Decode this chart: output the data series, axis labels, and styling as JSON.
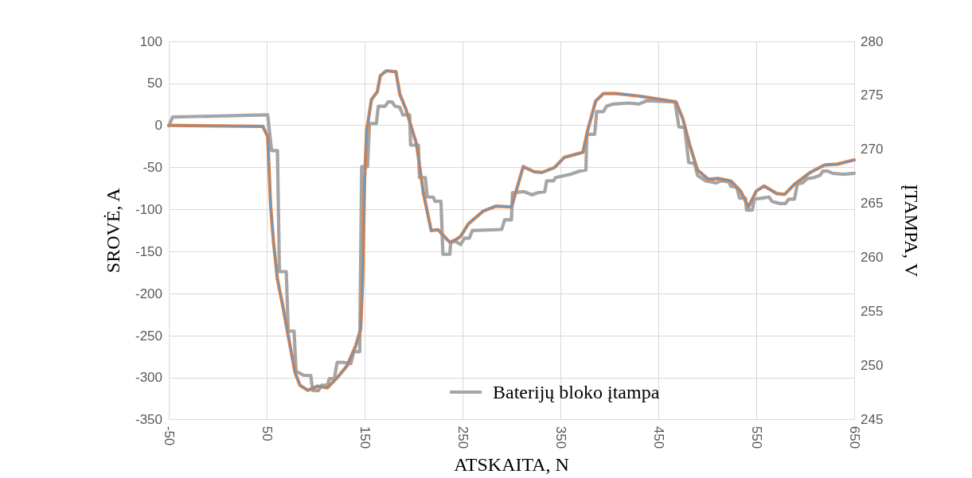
{
  "chart_data": {
    "type": "line",
    "xlabel": "ATSKAITA, N",
    "ylabel": "SROVĖ, A",
    "y2label": "ĮTAMPA, V",
    "xlim": [
      -50,
      650
    ],
    "xticks": [
      -50,
      50,
      150,
      250,
      350,
      450,
      550,
      650
    ],
    "ylim": [
      -350,
      100
    ],
    "yticks": [
      -350,
      -300,
      -250,
      -200,
      -150,
      -100,
      -50,
      0,
      50,
      100
    ],
    "y2lim": [
      245,
      280
    ],
    "y2ticks": [
      245,
      250,
      255,
      260,
      265,
      270,
      275,
      280
    ],
    "grid": true,
    "legend": "bottom",
    "marker": "none",
    "line_style": "solid",
    "series": [
      {
        "color": "#5b9bd5",
        "x": [
          -50,
          46,
          51,
          54,
          57,
          61,
          66,
          72,
          79,
          84,
          92,
          102,
          112,
          122,
          132,
          141,
          146,
          148,
          150,
          152,
          157,
          163,
          166,
          172,
          182,
          186,
          192,
          203,
          210,
          218,
          225,
          237,
          243,
          248,
          256,
          271,
          284,
          300,
          312,
          323,
          331,
          344,
          354,
          373,
          378,
          386,
          394,
          407,
          430,
          446,
          468,
          475,
          482,
          490,
          501,
          511,
          524,
          534,
          542,
          550,
          558,
          571,
          579,
          589,
          605,
          620,
          633,
          650
        ],
        "values": [
          0,
          -1,
          -13,
          -95,
          -139,
          -183,
          -212,
          -250,
          -294,
          -309,
          -315,
          -310,
          -312,
          -300,
          -286,
          -262,
          -242,
          -183,
          -66,
          -7,
          31,
          40,
          59,
          65,
          64,
          37,
          20,
          -22,
          -80,
          -125,
          -124,
          -139,
          -136,
          -132,
          -117,
          -102,
          -96,
          -97,
          -49,
          -55,
          -56,
          -50,
          -38,
          -32,
          -5,
          29,
          38,
          38,
          35,
          32,
          28,
          8,
          -23,
          -53,
          -64,
          -63,
          -66,
          -78,
          -97,
          -78,
          -72,
          -81,
          -82,
          -70,
          -56,
          -47,
          -46,
          -41
        ]
      },
      {
        "color": "#ed7d31",
        "x": [
          -50,
          46,
          51,
          54,
          57,
          61,
          66,
          72,
          79,
          84,
          92,
          102,
          112,
          122,
          132,
          141,
          146,
          148,
          150,
          152,
          157,
          163,
          166,
          172,
          182,
          186,
          192,
          203,
          210,
          218,
          225,
          237,
          243,
          248,
          256,
          271,
          284,
          300,
          312,
          323,
          331,
          344,
          354,
          373,
          378,
          386,
          394,
          407,
          430,
          446,
          468,
          475,
          482,
          490,
          501,
          511,
          524,
          534,
          542,
          550,
          558,
          571,
          579,
          589,
          605,
          620,
          633,
          650
        ],
        "values": [
          0,
          -1,
          -13,
          -95,
          -139,
          -183,
          -212,
          -250,
          -294,
          -309,
          -315,
          -310,
          -312,
          -300,
          -286,
          -262,
          -242,
          -183,
          -66,
          -7,
          31,
          40,
          59,
          65,
          64,
          37,
          20,
          -22,
          -80,
          -125,
          -124,
          -139,
          -136,
          -132,
          -117,
          -102,
          -96,
          -97,
          -49,
          -55,
          -56,
          -50,
          -38,
          -32,
          -5,
          29,
          38,
          38,
          35,
          32,
          28,
          8,
          -23,
          -53,
          -64,
          -63,
          -66,
          -78,
          -97,
          -78,
          -72,
          -81,
          -82,
          -70,
          -56,
          -47,
          -46,
          -41
        ]
      },
      {
        "name": "Baterijų bloko įtampa",
        "color": "#a5a5a5",
        "axis": "y2",
        "x": [
          -50,
          -46,
          51,
          55,
          61,
          63,
          70,
          72,
          78,
          80,
          88,
          95,
          97,
          103,
          106,
          112,
          114,
          119,
          122,
          128,
          136,
          139,
          145,
          147,
          153,
          155,
          162,
          164,
          171,
          174,
          178,
          181,
          186,
          189,
          196,
          197,
          205,
          206,
          212,
          214,
          220,
          222,
          228,
          230,
          237,
          238,
          243,
          248,
          252,
          257,
          260,
          290,
          293,
          300,
          301,
          313,
          321,
          327,
          334,
          336,
          343,
          345,
          360,
          370,
          376,
          377,
          385,
          387,
          394,
          397,
          404,
          420,
          430,
          438,
          467,
          471,
          477,
          481,
          487,
          490,
          498,
          509,
          514,
          522,
          524,
          530,
          533,
          539,
          540,
          546,
          548,
          556,
          563,
          566,
          574,
          580,
          583,
          589,
          592,
          597,
          602,
          609,
          615,
          618,
          623,
          628,
          639,
          650
        ],
        "values": [
          272.2,
          273.0,
          273.2,
          269.9,
          269.9,
          258.7,
          258.7,
          253.2,
          253.2,
          249.5,
          249.1,
          249.1,
          247.7,
          247.7,
          248.2,
          248.2,
          248.8,
          248.8,
          250.3,
          250.3,
          250.2,
          251.3,
          251.3,
          268.4,
          268.4,
          272.4,
          272.4,
          274.0,
          274.0,
          274.4,
          274.4,
          274.0,
          273.9,
          273.2,
          273.2,
          270.4,
          270.4,
          267.4,
          267.4,
          265.6,
          265.6,
          265.2,
          265.2,
          260.3,
          260.3,
          261.4,
          261.5,
          261.2,
          261.8,
          261.8,
          262.5,
          262.6,
          263.5,
          263.5,
          266.0,
          266.1,
          265.8,
          266.0,
          266.1,
          267.1,
          267.1,
          267.4,
          267.7,
          268.0,
          268.1,
          271.4,
          271.4,
          273.5,
          273.5,
          274.0,
          274.2,
          274.3,
          274.2,
          274.5,
          274.4,
          272.1,
          272.0,
          268.8,
          268.7,
          267.6,
          267.1,
          266.9,
          267.1,
          267.0,
          266.6,
          266.5,
          265.5,
          265.5,
          264.4,
          264.4,
          265.4,
          265.5,
          265.6,
          265.2,
          265.0,
          265.0,
          265.4,
          265.4,
          266.8,
          266.9,
          267.3,
          267.4,
          267.6,
          268.0,
          268.0,
          267.8,
          267.7,
          267.8
        ]
      }
    ]
  }
}
